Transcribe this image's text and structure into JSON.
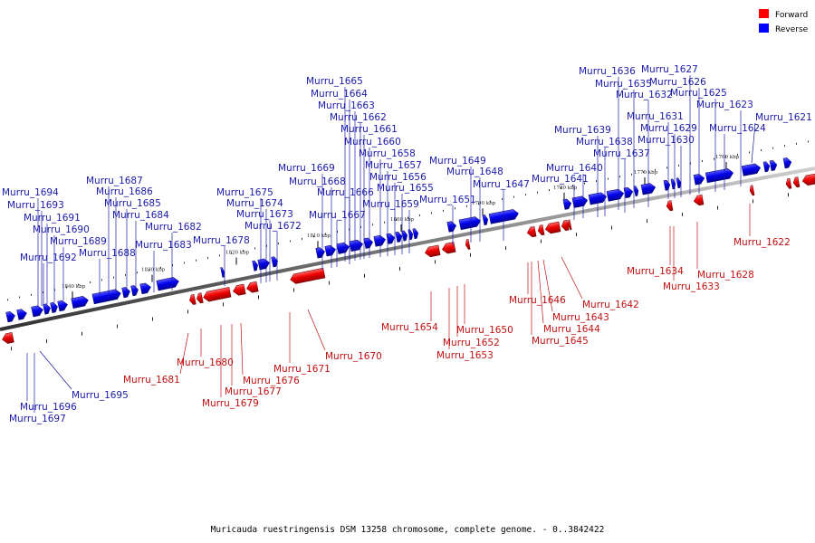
{
  "legend": {
    "forward": {
      "label": "Forward",
      "color": "#ff0000"
    },
    "reverse": {
      "label": "Reverse",
      "color": "#0000ff"
    }
  },
  "caption": "Muricauda ruestringensis DSM 13258 chromosome, complete genome. - 0..3842422",
  "ticks": [
    "1840 kbp",
    "1830 kbp",
    "1820 kbp",
    "1810 kbp",
    "1800 kbp",
    "1790 kbp",
    "1780 kbp",
    "1770 kbp",
    "1760 kbp"
  ],
  "genes_reverse": [
    "Murru_1694",
    "Murru_1693",
    "Murru_1691",
    "Murru_1690",
    "Murru_1692",
    "Murru_1689",
    "Murru_1687",
    "Murru_1686",
    "Murru_1685",
    "Murru_1684",
    "Murru_1688",
    "Murru_1683",
    "Murru_1682",
    "Murru_1675",
    "Murru_1674",
    "Murru_1678",
    "Murru_1673",
    "Murru_1672",
    "Murru_1669",
    "Murru_1668",
    "Murru_1665",
    "Murru_1664",
    "Murru_1663",
    "Murru_1662",
    "Murru_1661",
    "Murru_1660",
    "Murru_1667",
    "Murru_1666",
    "Murru_1658",
    "Murru_1657",
    "Murru_1656",
    "Murru_1655",
    "Murru_1659",
    "Murru_1649",
    "Murru_1648",
    "Murru_1647",
    "Murru_1651",
    "Murru_1636",
    "Murru_1635",
    "Murru_1632",
    "Murru_1627",
    "Murru_1626",
    "Murru_1625",
    "Murru_1623",
    "Murru_1631",
    "Murru_1629",
    "Murru_1639",
    "Murru_1638",
    "Murru_1637",
    "Murru_1630",
    "Murru_1624",
    "Murru_1621",
    "Murru_1640",
    "Murru_1641",
    "Murru_1696",
    "Murru_1697",
    "Murru_1695"
  ],
  "genes_forward": [
    "Murru_1681",
    "Murru_1680",
    "Murru_1676",
    "Murru_1677",
    "Murru_1679",
    "Murru_1671",
    "Murru_1670",
    "Murru_1654",
    "Murru_1650",
    "Murru_1652",
    "Murru_1653",
    "Murru_1646",
    "Murru_1643",
    "Murru_1644",
    "Murru_1645",
    "Murru_1642",
    "Murru_1634",
    "Murru_1633",
    "Murru_1628",
    "Murru_1622"
  ]
}
